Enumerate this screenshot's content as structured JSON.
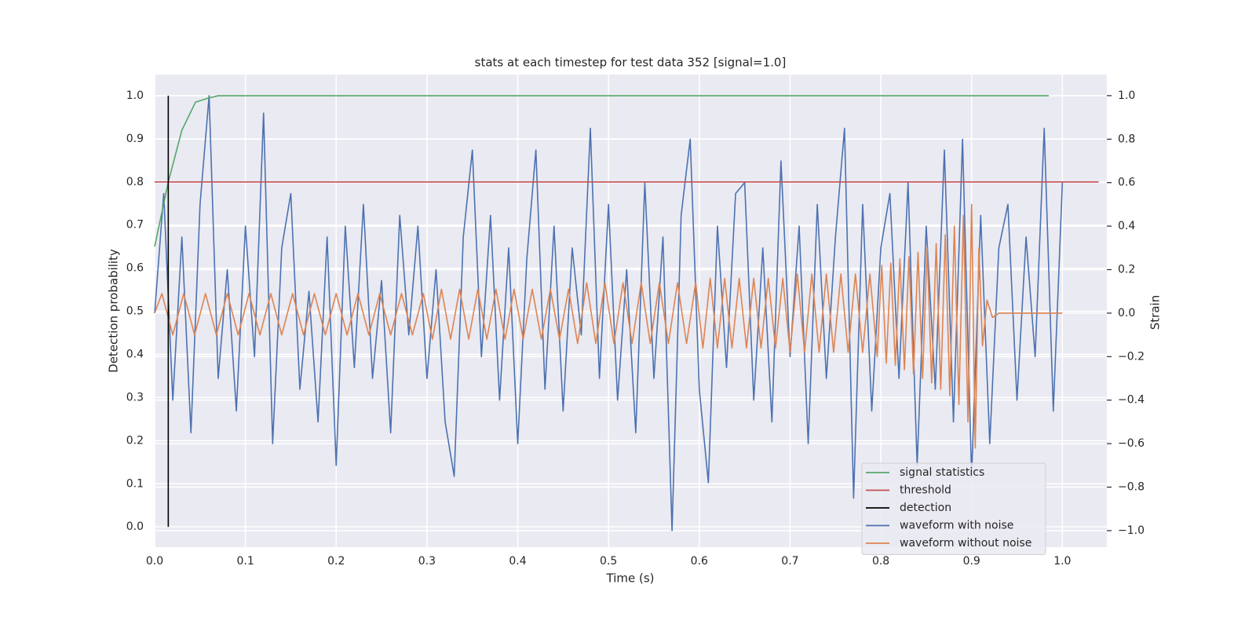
{
  "chart_data": {
    "type": "line",
    "title": "stats at each timestep for test data 352 [signal=1.0]",
    "xlabel": "Time (s)",
    "ylabel": "Detection probability",
    "y2label": "Strain",
    "xlim": [
      0,
      1.049
    ],
    "ylim": [
      -0.047,
      1.049
    ],
    "y2lim": [
      -1.076,
      1.097
    ],
    "xticks": [
      {
        "value": 0,
        "label": "0.0"
      },
      0.1,
      0.2,
      0.3,
      0.4,
      0.5,
      0.6,
      0.7,
      0.8,
      0.9,
      {
        "value": 1,
        "label": "1.0"
      }
    ],
    "yticks": [
      {
        "value": 0,
        "label": "0.0"
      },
      0.1,
      0.2,
      0.3,
      0.4,
      0.5,
      0.6,
      0.7,
      0.8,
      0.9,
      {
        "value": 1,
        "label": "1.0"
      }
    ],
    "y2ticks": [
      {
        "value": -1,
        "label": "−1.0"
      },
      {
        "value": -0.8,
        "label": "−0.8"
      },
      {
        "value": -0.6,
        "label": "−0.6"
      },
      {
        "value": -0.4,
        "label": "−0.4"
      },
      {
        "value": -0.2,
        "label": "−0.2"
      },
      {
        "value": 0,
        "label": "0.0"
      },
      0.2,
      0.4,
      0.6,
      0.8,
      {
        "value": 1,
        "label": "1.0"
      }
    ],
    "grid": true,
    "legend": "lower right",
    "series": [
      {
        "name": "signal statistics",
        "color": "#55a868",
        "x": [
          0,
          0.015,
          0.03,
          0.045,
          0.06,
          0.07,
          0.985
        ],
        "values": [
          0.65,
          0.8,
          0.92,
          0.985,
          0.995,
          1.0,
          1.0
        ]
      },
      {
        "name": "threshold",
        "color": "#c44e52",
        "x": [
          0,
          1.04
        ],
        "values": [
          0.8,
          0.8
        ]
      },
      {
        "name": "detection",
        "color": "#000000",
        "x": [
          0.015,
          0.015
        ],
        "values": [
          0,
          1
        ]
      },
      {
        "name": "waveform with noise",
        "color": "#4c72b0",
        "axis": "y2",
        "x": [
          0,
          0.01,
          0.02,
          0.03,
          0.04,
          0.05,
          0.06,
          0.07,
          0.08,
          0.09,
          0.1,
          0.11,
          0.12,
          0.13,
          0.14,
          0.15,
          0.16,
          0.17,
          0.18,
          0.19,
          0.2,
          0.21,
          0.22,
          0.23,
          0.24,
          0.25,
          0.26,
          0.27,
          0.28,
          0.29,
          0.3,
          0.31,
          0.32,
          0.33,
          0.34,
          0.35,
          0.36,
          0.37,
          0.38,
          0.39,
          0.4,
          0.41,
          0.42,
          0.43,
          0.44,
          0.45,
          0.46,
          0.47,
          0.48,
          0.49,
          0.5,
          0.51,
          0.52,
          0.53,
          0.54,
          0.55,
          0.56,
          0.57,
          0.58,
          0.59,
          0.6,
          0.61,
          0.62,
          0.63,
          0.64,
          0.65,
          0.66,
          0.67,
          0.68,
          0.69,
          0.7,
          0.71,
          0.72,
          0.73,
          0.74,
          0.75,
          0.76,
          0.77,
          0.78,
          0.79,
          0.8,
          0.81,
          0.82,
          0.83,
          0.84,
          0.85,
          0.86,
          0.87,
          0.88,
          0.89,
          0.9,
          0.91,
          0.92,
          0.93,
          0.94,
          0.95,
          0.96,
          0.97,
          0.98,
          0.99,
          1.0
        ],
        "values": [
          0.0,
          0.55,
          -0.4,
          0.35,
          -0.55,
          0.5,
          1.0,
          -0.3,
          0.2,
          -0.45,
          0.4,
          -0.2,
          0.92,
          -0.6,
          0.3,
          0.55,
          -0.35,
          0.1,
          -0.5,
          0.35,
          -0.7,
          0.4,
          -0.25,
          0.5,
          -0.3,
          0.15,
          -0.55,
          0.45,
          -0.1,
          0.4,
          -0.3,
          0.2,
          -0.5,
          -0.75,
          0.35,
          0.75,
          -0.2,
          0.45,
          -0.4,
          0.3,
          -0.6,
          0.25,
          0.75,
          -0.35,
          0.4,
          -0.45,
          0.3,
          -0.1,
          0.85,
          -0.3,
          0.5,
          -0.4,
          0.2,
          -0.55,
          0.6,
          -0.3,
          0.35,
          -1.0,
          0.45,
          0.8,
          -0.35,
          -0.78,
          0.4,
          -0.25,
          0.55,
          0.6,
          -0.4,
          0.3,
          -0.5,
          0.7,
          -0.2,
          0.4,
          -0.6,
          0.5,
          -0.3,
          0.35,
          0.85,
          -0.85,
          0.5,
          -0.45,
          0.3,
          0.55,
          -0.3,
          0.6,
          -0.7,
          0.4,
          -0.35,
          0.75,
          -0.5,
          0.8,
          -0.75,
          0.45,
          -0.6,
          0.3,
          0.5,
          -0.4,
          0.35,
          -0.2,
          0.85,
          -0.45,
          0.6
        ]
      },
      {
        "name": "waveform without noise",
        "color": "#dd8452",
        "axis": "y2",
        "x": [
          0,
          0.008,
          0.02,
          0.032,
          0.044,
          0.056,
          0.068,
          0.08,
          0.092,
          0.104,
          0.116,
          0.128,
          0.14,
          0.152,
          0.164,
          0.176,
          0.188,
          0.2,
          0.212,
          0.224,
          0.236,
          0.248,
          0.26,
          0.272,
          0.284,
          0.296,
          0.306,
          0.316,
          0.326,
          0.336,
          0.346,
          0.356,
          0.366,
          0.376,
          0.386,
          0.396,
          0.406,
          0.416,
          0.426,
          0.436,
          0.446,
          0.456,
          0.466,
          0.476,
          0.486,
          0.496,
          0.506,
          0.516,
          0.526,
          0.536,
          0.546,
          0.556,
          0.566,
          0.576,
          0.586,
          0.596,
          0.604,
          0.612,
          0.62,
          0.628,
          0.636,
          0.644,
          0.652,
          0.66,
          0.668,
          0.676,
          0.684,
          0.692,
          0.7,
          0.708,
          0.716,
          0.724,
          0.732,
          0.74,
          0.748,
          0.756,
          0.764,
          0.772,
          0.78,
          0.788,
          0.796,
          0.801,
          0.806,
          0.811,
          0.816,
          0.821,
          0.826,
          0.831,
          0.836,
          0.841,
          0.846,
          0.851,
          0.856,
          0.861,
          0.866,
          0.871,
          0.876,
          0.881,
          0.886,
          0.891,
          0.896,
          0.9,
          0.904,
          0.908,
          0.912,
          0.917,
          0.923,
          0.93,
          1.0
        ],
        "values": [
          0,
          0.09,
          -0.1,
          0.09,
          -0.1,
          0.09,
          -0.1,
          0.09,
          -0.1,
          0.09,
          -0.1,
          0.09,
          -0.1,
          0.09,
          -0.1,
          0.09,
          -0.1,
          0.09,
          -0.1,
          0.09,
          -0.1,
          0.09,
          -0.1,
          0.09,
          -0.1,
          0.09,
          -0.12,
          0.11,
          -0.12,
          0.11,
          -0.12,
          0.11,
          -0.12,
          0.11,
          -0.12,
          0.11,
          -0.12,
          0.11,
          -0.12,
          0.11,
          -0.12,
          0.11,
          -0.14,
          0.14,
          -0.14,
          0.14,
          -0.14,
          0.14,
          -0.14,
          0.14,
          -0.14,
          0.14,
          -0.14,
          0.14,
          -0.14,
          0.14,
          -0.16,
          0.16,
          -0.16,
          0.16,
          -0.16,
          0.16,
          -0.16,
          0.16,
          -0.16,
          0.16,
          -0.16,
          0.16,
          -0.18,
          0.18,
          -0.18,
          0.18,
          -0.18,
          0.18,
          -0.18,
          0.18,
          -0.18,
          0.18,
          -0.18,
          0.18,
          -0.2,
          0.22,
          -0.23,
          0.23,
          -0.24,
          0.25,
          -0.26,
          0.26,
          -0.28,
          0.28,
          -0.3,
          0.3,
          -0.32,
          0.32,
          -0.35,
          0.36,
          -0.38,
          0.4,
          -0.42,
          0.45,
          -0.5,
          0.5,
          -0.62,
          0.3,
          -0.15,
          0.06,
          -0.02,
          0,
          0
        ]
      }
    ]
  }
}
